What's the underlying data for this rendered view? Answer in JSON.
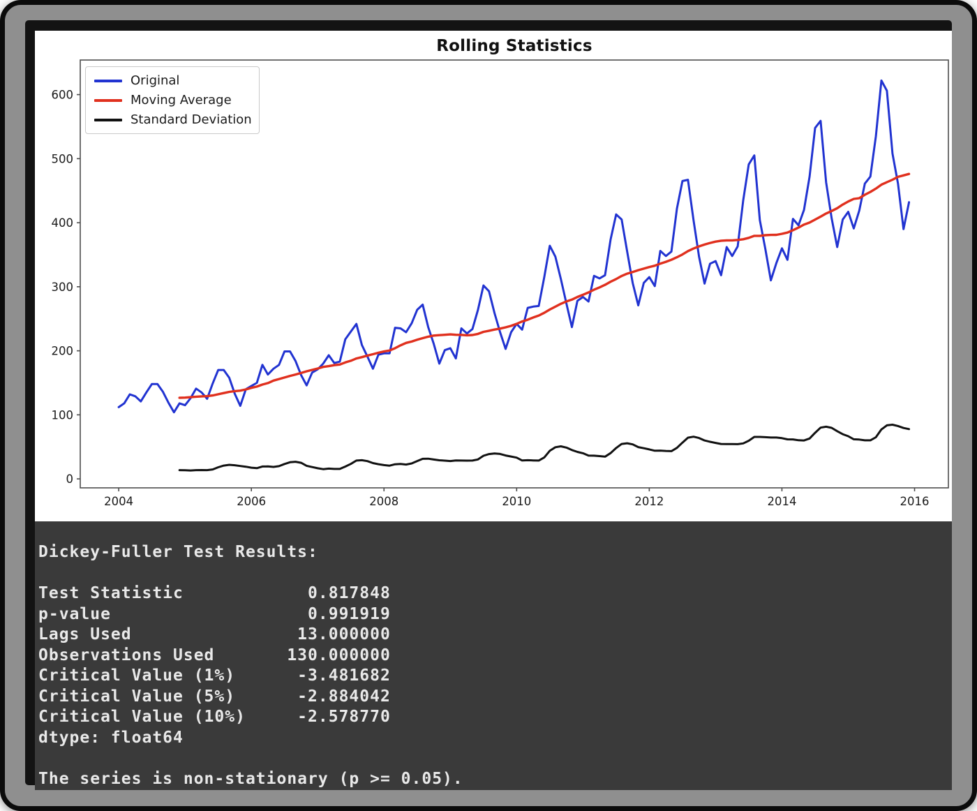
{
  "figure": {
    "title": "Rolling Statistics",
    "legend": [
      {
        "label": "Original",
        "color": "#2133d1"
      },
      {
        "label": "Moving Average",
        "color": "#e0301e"
      },
      {
        "label": "Standard Deviation",
        "color": "#111111"
      }
    ]
  },
  "chart_data": {
    "type": "line",
    "title": "Rolling Statistics",
    "xlabel": "",
    "ylabel": "",
    "x_start_year": 2004,
    "x_frequency": "monthly",
    "rolling_window": 12,
    "x_ticks": [
      2004,
      2006,
      2008,
      2010,
      2012,
      2014,
      2016
    ],
    "y_ticks": [
      0,
      100,
      200,
      300,
      400,
      500,
      600
    ],
    "xlim": [
      2003.42,
      2016.51
    ],
    "ylim": [
      -14,
      654
    ],
    "grid": false,
    "legend_position": "upper left",
    "series": [
      {
        "name": "Original",
        "color": "#2133d1",
        "values": [
          112,
          118,
          132,
          129,
          121,
          135,
          148,
          148,
          136,
          119,
          104,
          118,
          115,
          126,
          141,
          135,
          125,
          149,
          170,
          170,
          158,
          133,
          114,
          140,
          145,
          150,
          178,
          163,
          172,
          178,
          199,
          199,
          184,
          162,
          146,
          166,
          171,
          180,
          193,
          181,
          183,
          218,
          230,
          242,
          209,
          191,
          172,
          194,
          196,
          196,
          236,
          235,
          229,
          243,
          264,
          272,
          237,
          211,
          180,
          201,
          204,
          188,
          235,
          227,
          234,
          264,
          302,
          293,
          259,
          229,
          203,
          229,
          242,
          233,
          267,
          269,
          270,
          315,
          364,
          347,
          312,
          274,
          237,
          278,
          284,
          277,
          317,
          313,
          318,
          374,
          413,
          405,
          355,
          306,
          271,
          306,
          315,
          301,
          356,
          348,
          355,
          422,
          465,
          467,
          404,
          347,
          305,
          336,
          340,
          318,
          362,
          348,
          363,
          435,
          491,
          505,
          404,
          359,
          310,
          337,
          360,
          342,
          406,
          396,
          420,
          472,
          548,
          559,
          463,
          407,
          362,
          405,
          417,
          391,
          419,
          461,
          472,
          535,
          622,
          606,
          508,
          461,
          390,
          432
        ]
      },
      {
        "name": "Moving Average",
        "color": "#e0301e",
        "derived": "rolling_mean(Original, window=12)"
      },
      {
        "name": "Standard Deviation",
        "color": "#111111",
        "derived": "rolling_std(Original, window=12, ddof=1)"
      }
    ]
  },
  "terminal": {
    "lines": [
      "Dickey-Fuller Test Results:",
      "",
      "Test Statistic            0.817848",
      "p-value                   0.991919",
      "Lags Used                13.000000",
      "Observations Used       130.000000",
      "Critical Value (1%)      -3.481682",
      "Critical Value (5%)      -2.884042",
      "Critical Value (10%)     -2.578770",
      "dtype: float64",
      "",
      "The series is non-stationary (p >= 0.05)."
    ]
  }
}
